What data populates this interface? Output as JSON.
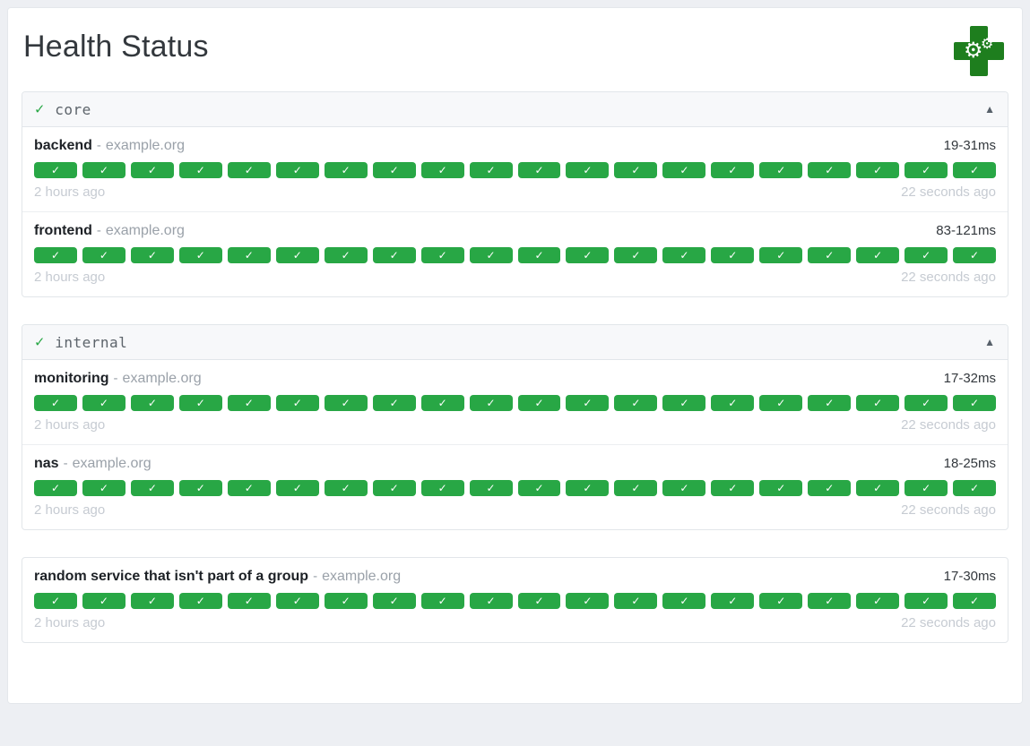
{
  "colors": {
    "success": "#28a745",
    "logo_green": "#1e7e1e"
  },
  "header": {
    "title": "Health Status"
  },
  "timeline": {
    "checks_per_row": 20,
    "check_glyph": "✓"
  },
  "groups": [
    {
      "name": "core",
      "status_glyph": "✓",
      "collapse_glyph": "▲",
      "services": [
        {
          "name": "backend",
          "separator": "-",
          "hostname": "example.org",
          "latency": "19-31ms",
          "oldest": "2 hours ago",
          "newest": "22 seconds ago"
        },
        {
          "name": "frontend",
          "separator": "-",
          "hostname": "example.org",
          "latency": "83-121ms",
          "oldest": "2 hours ago",
          "newest": "22 seconds ago"
        }
      ]
    },
    {
      "name": "internal",
      "status_glyph": "✓",
      "collapse_glyph": "▲",
      "services": [
        {
          "name": "monitoring",
          "separator": "-",
          "hostname": "example.org",
          "latency": "17-32ms",
          "oldest": "2 hours ago",
          "newest": "22 seconds ago"
        },
        {
          "name": "nas",
          "separator": "-",
          "hostname": "example.org",
          "latency": "18-25ms",
          "oldest": "2 hours ago",
          "newest": "22 seconds ago"
        }
      ]
    },
    {
      "name": "",
      "status_glyph": "",
      "collapse_glyph": "",
      "services": [
        {
          "name": "random service that isn't part of a group",
          "separator": "-",
          "hostname": "example.org",
          "latency": "17-30ms",
          "oldest": "2 hours ago",
          "newest": "22 seconds ago"
        }
      ]
    }
  ]
}
